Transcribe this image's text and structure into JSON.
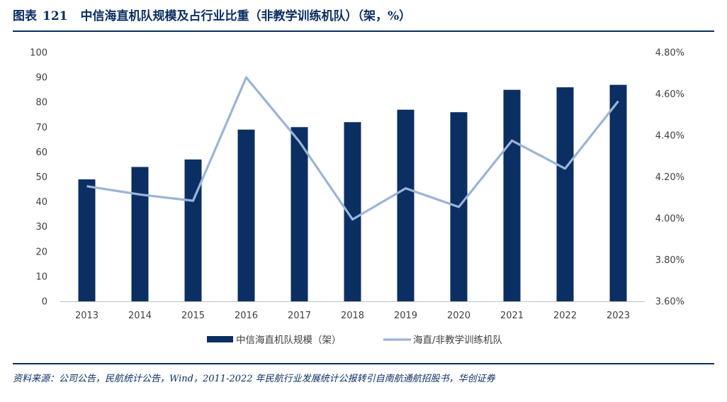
{
  "figure": {
    "label": "图表",
    "number": "121",
    "title": "中信海直机队规模及占行业比重（非教学训练机队）（架，%）"
  },
  "source": "资料来源：公司公告，民航统计公告，Wind，2011-2022 年民航行业发展统计公报转引自南航通航招股书，华创证券",
  "colors": {
    "bar": "#0b2f63",
    "line": "#9bb4d6",
    "axis": "#bfbfbf",
    "text": "#404040"
  },
  "chart_data": {
    "type": "bar",
    "title": "中信海直机队规模及占行业比重（非教学训练机队）（架，%）",
    "categories": [
      "2013",
      "2014",
      "2015",
      "2016",
      "2017",
      "2018",
      "2019",
      "2020",
      "2021",
      "2022",
      "2023"
    ],
    "series": [
      {
        "name": "中信海直机队规模（架）",
        "type": "bar",
        "axis": "left",
        "values": [
          49,
          54,
          57,
          69,
          70,
          72,
          77,
          76,
          85,
          86,
          87
        ]
      },
      {
        "name": "海直/非教学训练机队",
        "type": "line",
        "axis": "right",
        "values": [
          4.155,
          4.115,
          4.085,
          4.68,
          4.37,
          3.995,
          4.145,
          4.055,
          4.375,
          4.24,
          4.565
        ]
      }
    ],
    "y_left": {
      "min": 0,
      "max": 100,
      "ticks": [
        "0",
        "10",
        "20",
        "30",
        "40",
        "50",
        "60",
        "70",
        "80",
        "90",
        "100"
      ]
    },
    "y_right": {
      "min": 3.6,
      "max": 4.8,
      "ticks": [
        "3.60%",
        "3.80%",
        "4.00%",
        "4.20%",
        "4.40%",
        "4.60%",
        "4.80%"
      ]
    },
    "grid": false,
    "legend_position": "bottom"
  }
}
